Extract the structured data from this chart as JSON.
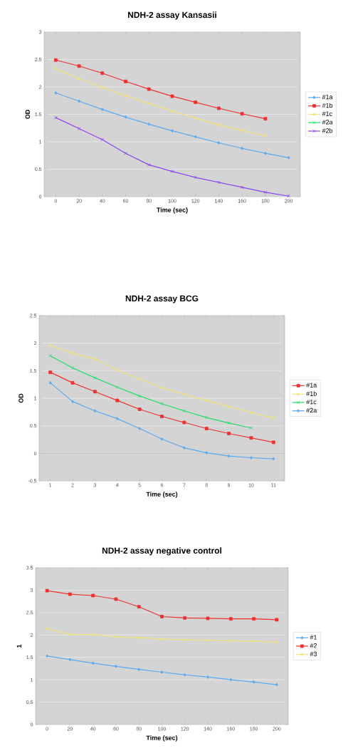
{
  "chart_data": [
    {
      "type": "line",
      "title": "NDH-2 assay Kansasii",
      "xlabel": "Time (sec)",
      "ylabel": "OD",
      "categories": [
        "0",
        "20",
        "40",
        "60",
        "80",
        "100",
        "120",
        "140",
        "160",
        "180",
        "200"
      ],
      "ylim": [
        0,
        3
      ],
      "yticks": [
        0,
        0.5,
        1,
        1.5,
        2,
        2.5,
        3
      ],
      "grid": "y",
      "legend": "right",
      "series": [
        {
          "name": "#1a",
          "color": "#5aaaf0",
          "marker": "diamond",
          "values": [
            1.89,
            1.74,
            1.59,
            1.45,
            1.32,
            1.2,
            1.09,
            0.98,
            0.88,
            0.79,
            0.71
          ]
        },
        {
          "name": "#1b",
          "color": "#ef3030",
          "marker": "square",
          "values": [
            2.49,
            2.38,
            2.25,
            2.1,
            1.96,
            1.83,
            1.72,
            1.61,
            1.51,
            1.42,
            null
          ]
        },
        {
          "name": "#1c",
          "color": "#f0e27a",
          "marker": "triangle",
          "values": [
            2.33,
            2.15,
            1.99,
            1.84,
            1.7,
            1.56,
            1.43,
            1.31,
            1.21,
            1.11,
            null
          ]
        },
        {
          "name": "#2a",
          "color": "#22dd66",
          "marker": "cross",
          "values": [
            null,
            null,
            null,
            null,
            null,
            null,
            null,
            null,
            null,
            null,
            null
          ]
        },
        {
          "name": "#2b",
          "color": "#8844ee",
          "marker": "cross",
          "values": [
            1.44,
            1.24,
            1.04,
            0.79,
            0.58,
            0.46,
            0.35,
            0.26,
            0.17,
            0.08,
            0.01
          ]
        }
      ]
    },
    {
      "type": "line",
      "title": "NDH-2 assay BCG",
      "xlabel": "Time (sec)",
      "ylabel": "OD",
      "categories": [
        "1",
        "2",
        "3",
        "4",
        "5",
        "6",
        "7",
        "8",
        "9",
        "10",
        "11"
      ],
      "ylim": [
        -0.5,
        2.5
      ],
      "yticks": [
        -0.5,
        0,
        0.5,
        1,
        1.5,
        2,
        2.5
      ],
      "grid": "y",
      "legend": "right",
      "series": [
        {
          "name": "#1a",
          "color": "#ef3030",
          "marker": "square",
          "values": [
            1.47,
            1.28,
            1.12,
            0.96,
            0.8,
            0.67,
            0.56,
            0.45,
            0.36,
            0.28,
            0.2
          ]
        },
        {
          "name": "#1b",
          "color": "#f0e27a",
          "marker": "triangle",
          "values": [
            1.96,
            1.82,
            1.71,
            1.51,
            1.35,
            1.19,
            1.07,
            0.96,
            0.85,
            0.74,
            0.64
          ]
        },
        {
          "name": "#1c",
          "color": "#22dd66",
          "marker": "cross",
          "values": [
            1.77,
            1.55,
            1.37,
            1.2,
            1.04,
            0.9,
            0.77,
            0.65,
            0.55,
            0.46,
            null
          ]
        },
        {
          "name": "#2a",
          "color": "#5aaaf0",
          "marker": "diamond",
          "values": [
            1.28,
            0.94,
            0.77,
            0.63,
            0.45,
            0.26,
            0.1,
            0.01,
            -0.05,
            -0.08,
            -0.1
          ]
        }
      ]
    },
    {
      "type": "line",
      "title": "NDH-2 assay negative control",
      "xlabel": "Time (sec)",
      "ylabel": "1",
      "categories": [
        "0",
        "20",
        "40",
        "60",
        "80",
        "100",
        "120",
        "140",
        "160",
        "180",
        "200"
      ],
      "ylim": [
        0,
        3.5
      ],
      "yticks": [
        0,
        0.5,
        1,
        1.5,
        2,
        2.5,
        3,
        3.5
      ],
      "grid": "y",
      "legend": "right",
      "series": [
        {
          "name": "#1",
          "color": "#5aaaf0",
          "marker": "diamond",
          "values": [
            1.53,
            1.45,
            1.37,
            1.3,
            1.23,
            1.17,
            1.11,
            1.06,
            1.0,
            0.95,
            0.89
          ]
        },
        {
          "name": "#2",
          "color": "#ef3030",
          "marker": "square",
          "values": [
            2.99,
            2.91,
            2.88,
            2.8,
            2.63,
            2.41,
            2.38,
            2.37,
            2.36,
            2.36,
            2.34
          ]
        },
        {
          "name": "#3",
          "color": "#f0e27a",
          "marker": "triangle",
          "values": [
            2.14,
            2.01,
            2.01,
            1.96,
            1.94,
            1.91,
            1.89,
            1.88,
            1.87,
            1.86,
            1.84
          ]
        }
      ]
    }
  ]
}
